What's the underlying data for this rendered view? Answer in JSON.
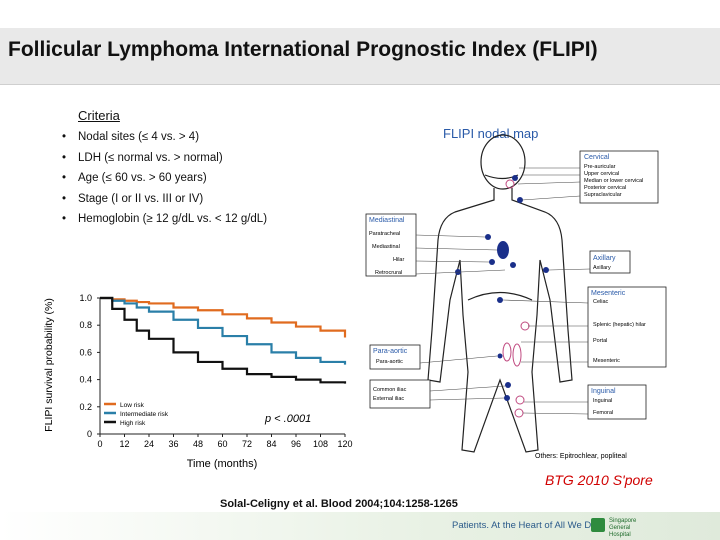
{
  "slide": {
    "title": "Follicular Lymphoma International Prognostic Index (FLIPI)",
    "criteria_heading": "Criteria",
    "criteria": [
      "Nodal sites (≤ 4 vs. > 4)",
      "LDH (≤ normal vs. > normal)",
      "Age (≤ 60 vs. > 60 years)",
      "Stage (I or II vs. III or IV)",
      "Hemoglobin (≥ 12 g/dL vs. < 12 g/dL)"
    ],
    "citation": "Solal-Celigny et al. Blood 2004;104:1258-1265",
    "watermark": "BTG 2010 S'pore",
    "footer_tagline": "Patients. At the Heart of All We Do.",
    "footer_hospital": "Singapore General Hospital"
  },
  "chart_data": {
    "type": "line",
    "xlabel": "Time (months)",
    "ylabel": "FLIPI survival probability (%)",
    "xticks": [
      "0",
      "12",
      "24",
      "36",
      "48",
      "60",
      "72",
      "84",
      "96",
      "108",
      "120"
    ],
    "yticks": [
      "0",
      "0.2",
      "0.4",
      "0.6",
      "0.8",
      "1.0"
    ],
    "xlim": [
      0,
      120
    ],
    "ylim": [
      0,
      1.0
    ],
    "annotation": "p < .0001",
    "legend_position": "bottom-left",
    "series": [
      {
        "name": "Low risk",
        "color": "#e06b1f",
        "x": [
          0,
          6,
          12,
          18,
          24,
          36,
          48,
          60,
          72,
          84,
          96,
          108,
          120
        ],
        "y": [
          1.0,
          0.99,
          0.98,
          0.97,
          0.96,
          0.93,
          0.91,
          0.88,
          0.85,
          0.82,
          0.79,
          0.76,
          0.71
        ]
      },
      {
        "name": "Intermediate risk",
        "color": "#2a7fa8",
        "x": [
          0,
          6,
          12,
          18,
          24,
          36,
          48,
          60,
          72,
          84,
          96,
          108,
          120
        ],
        "y": [
          1.0,
          0.98,
          0.96,
          0.93,
          0.9,
          0.84,
          0.78,
          0.72,
          0.66,
          0.6,
          0.56,
          0.53,
          0.51
        ]
      },
      {
        "name": "High risk",
        "color": "#111111",
        "x": [
          0,
          6,
          12,
          18,
          24,
          36,
          48,
          60,
          72,
          84,
          96,
          108,
          120
        ],
        "y": [
          1.0,
          0.92,
          0.84,
          0.76,
          0.7,
          0.6,
          0.53,
          0.48,
          0.44,
          0.42,
          0.4,
          0.38,
          0.37
        ]
      }
    ]
  },
  "nodal_map": {
    "title": "FLIPI nodal map",
    "boxes": [
      {
        "heading": "Cervical",
        "items": [
          "Pre-auricular",
          "Upper cervical",
          "Median or lower cervical",
          "Posterior cervical",
          "Supraclavicular"
        ]
      },
      {
        "heading": "Mediastinal",
        "items": [
          "Paratracheal",
          "Mediastinal",
          "Hilar",
          "Retrocrural"
        ]
      },
      {
        "heading": "Axillary",
        "items": [
          "Axillary"
        ]
      },
      {
        "heading": "Mesenteric",
        "items": [
          "Celiac",
          "Splenic (hepatic) hilar",
          "Portal",
          "Mesenteric"
        ]
      },
      {
        "heading": "Para-aortic",
        "items": [
          "Para-aortic"
        ]
      },
      {
        "heading": "",
        "items": [
          "Common iliac",
          "External iliac"
        ]
      },
      {
        "heading": "Inguinal",
        "items": [
          "Inguinal",
          "Femoral"
        ]
      }
    ],
    "others": "Others: Epitrochlear, popliteal",
    "colors": {
      "box_heading": "#2a5aa8",
      "node": "#1a2f8a",
      "node_outline": "#c04a80"
    }
  }
}
